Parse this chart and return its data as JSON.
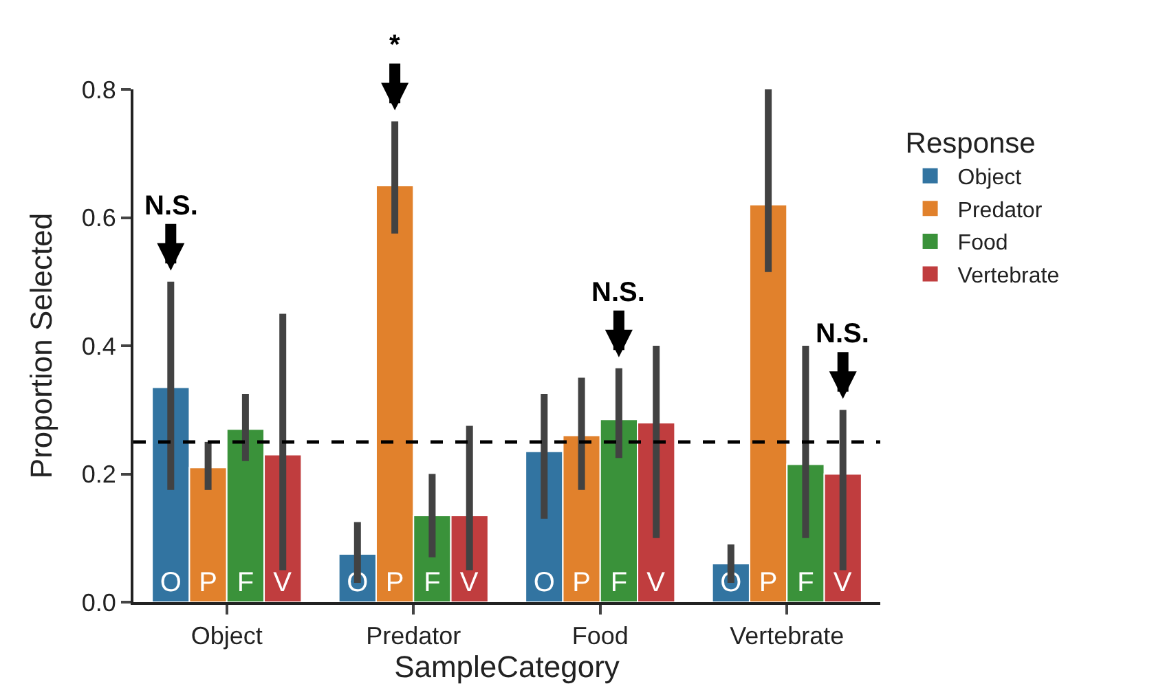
{
  "chart_data": {
    "type": "bar",
    "xlabel": "SampleCategory",
    "ylabel": "Proportion Selected",
    "legend_title": "Response",
    "legend": "right",
    "categories": [
      "Object",
      "Predator",
      "Food",
      "Vertebrate"
    ],
    "series": [
      {
        "name": "Object",
        "color": "#3274a1",
        "values": [
          0.335,
          0.075,
          0.235,
          0.06
        ],
        "errors": [
          [
            0.175,
            0.5
          ],
          [
            0.03,
            0.125
          ],
          [
            0.13,
            0.325
          ],
          [
            0.03,
            0.09
          ]
        ],
        "value_labels": [
          "O",
          "O",
          "O",
          "O"
        ]
      },
      {
        "name": "Predator",
        "color": "#e1812c",
        "values": [
          0.21,
          0.65,
          0.26,
          0.62
        ],
        "errors": [
          [
            0.175,
            0.25
          ],
          [
            0.575,
            0.75
          ],
          [
            0.175,
            0.35
          ],
          [
            0.515,
            0.8
          ]
        ],
        "value_labels": [
          "P",
          "P",
          "P",
          "P"
        ]
      },
      {
        "name": "Food",
        "color": "#3a923a",
        "values": [
          0.27,
          0.135,
          0.285,
          0.215
        ],
        "errors": [
          [
            0.22,
            0.325
          ],
          [
            0.07,
            0.2
          ],
          [
            0.225,
            0.365
          ],
          [
            0.1,
            0.4
          ]
        ],
        "value_labels": [
          "F",
          "F",
          "F",
          "F"
        ]
      },
      {
        "name": "Vertebrate",
        "color": "#c03d3e",
        "values": [
          0.23,
          0.135,
          0.28,
          0.2
        ],
        "errors": [
          [
            0.05,
            0.45
          ],
          [
            0.05,
            0.275
          ],
          [
            0.1,
            0.4
          ],
          [
            0.05,
            0.3
          ]
        ],
        "value_labels": [
          "V",
          "V",
          "V",
          "V"
        ]
      }
    ],
    "ylim": [
      0,
      0.8
    ],
    "yticks": [
      {
        "value": 0,
        "label": "0.0"
      },
      {
        "value": 0.2,
        "label": "0.2"
      },
      {
        "value": 0.4,
        "label": "0.4"
      },
      {
        "value": 0.6,
        "label": "0.6"
      },
      {
        "value": 0.8,
        "label": "0.8"
      }
    ],
    "ref_lines": [
      {
        "axis": "y",
        "value": 0.25,
        "color": "#000000",
        "line_style": "dashed"
      }
    ],
    "annotations": [
      "N.S.",
      "*",
      "N.S.",
      "N.S."
    ]
  }
}
